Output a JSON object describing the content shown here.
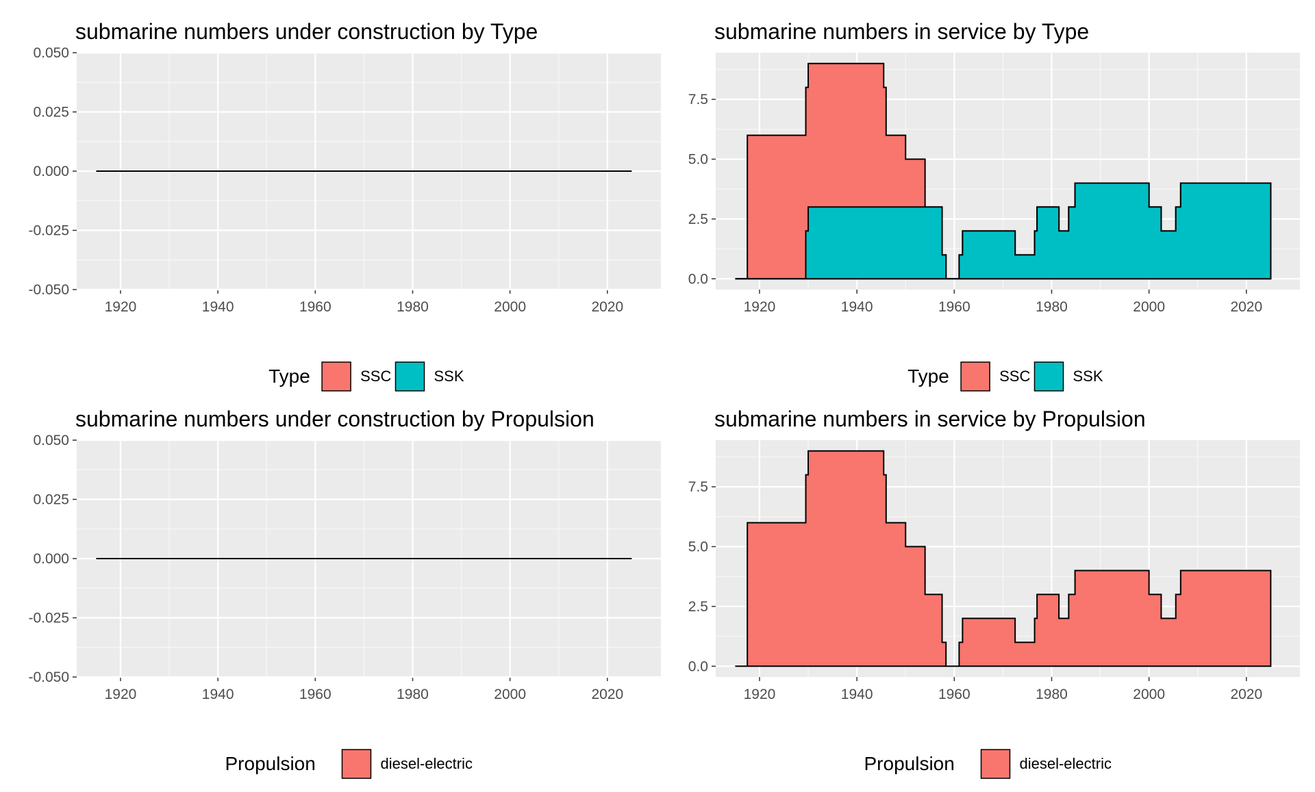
{
  "chart_data": [
    {
      "type": "area",
      "title": "submarine numbers under construction by Type",
      "xlabel": "",
      "ylabel": "",
      "xlim": [
        1911,
        2031
      ],
      "ylim": [
        -0.05,
        0.05
      ],
      "x_ticks": [
        1920,
        1940,
        1960,
        1980,
        2000,
        2020
      ],
      "y_ticks": [
        -0.05,
        -0.025,
        0,
        0.025,
        0.05
      ],
      "y_tick_labels": [
        "-0.050",
        "-0.025",
        "0.000",
        "0.025",
        "0.050"
      ],
      "grid": true,
      "legend": {
        "position": "bottom",
        "title": "Type",
        "entries": [
          {
            "label": "SSC",
            "color": "#F8766D"
          },
          {
            "label": "SSK",
            "color": "#00BFC4"
          }
        ]
      },
      "series": [
        {
          "points": [
            [
              1915,
              0
            ],
            [
              2025,
              0
            ]
          ]
        }
      ]
    },
    {
      "type": "area",
      "title": "submarine numbers in service by Type",
      "xlabel": "",
      "ylabel": "",
      "xlim": [
        1911,
        2031
      ],
      "ylim": [
        -0.45,
        9.45
      ],
      "x_ticks": [
        1920,
        1940,
        1960,
        1980,
        2000,
        2020
      ],
      "y_ticks": [
        0,
        2.5,
        5,
        7.5
      ],
      "y_tick_labels": [
        "0.0",
        "2.5",
        "5.0",
        "7.5"
      ],
      "grid": true,
      "stacked": true,
      "legend": {
        "position": "bottom",
        "title": "Type",
        "entries": [
          {
            "label": "SSC",
            "color": "#F8766D"
          },
          {
            "label": "SSK",
            "color": "#00BFC4"
          }
        ]
      },
      "series": [
        {
          "name": "SSC",
          "color": "#F8766D",
          "points": [
            [
              1915,
              0
            ],
            [
              1917.5,
              0
            ],
            [
              1917.5,
              6
            ],
            [
              1929.5,
              6
            ],
            [
              1929.5,
              8
            ],
            [
              1930,
              8
            ],
            [
              1930,
              9
            ],
            [
              1945.5,
              9
            ],
            [
              1945.5,
              8
            ],
            [
              1946,
              8
            ],
            [
              1946,
              6
            ],
            [
              1950,
              6
            ],
            [
              1950,
              5
            ],
            [
              1954,
              5
            ],
            [
              1954,
              3
            ],
            [
              1957.5,
              3
            ],
            [
              1957.5,
              1
            ],
            [
              1958.3,
              1
            ],
            [
              1958.3,
              0
            ],
            [
              1961,
              0
            ],
            [
              1961,
              1
            ],
            [
              1961.7,
              1
            ],
            [
              1961.7,
              2
            ],
            [
              1972.5,
              2
            ],
            [
              1972.5,
              1
            ],
            [
              1976.5,
              1
            ],
            [
              1976.5,
              2
            ],
            [
              1977,
              2
            ],
            [
              1977,
              3
            ],
            [
              1981.5,
              3
            ],
            [
              1981.5,
              2
            ],
            [
              1983.5,
              2
            ],
            [
              1983.5,
              3
            ],
            [
              1984.8,
              3
            ],
            [
              1984.8,
              4
            ],
            [
              2000,
              4
            ],
            [
              2000,
              3
            ],
            [
              2002.5,
              3
            ],
            [
              2002.5,
              2
            ],
            [
              2005.5,
              2
            ],
            [
              2005.5,
              3
            ],
            [
              2006.5,
              3
            ],
            [
              2006.5,
              4
            ],
            [
              2025,
              4
            ],
            [
              2025,
              0
            ]
          ]
        },
        {
          "name": "SSK",
          "color": "#00BFC4",
          "points": [
            [
              1915,
              0
            ],
            [
              1929.5,
              0
            ],
            [
              1929.5,
              2
            ],
            [
              1930,
              2
            ],
            [
              1930,
              3
            ],
            [
              1957.5,
              3
            ],
            [
              1957.5,
              1
            ],
            [
              1958.3,
              1
            ],
            [
              1958.3,
              0
            ],
            [
              1961,
              0
            ],
            [
              1961,
              1
            ],
            [
              1961.7,
              1
            ],
            [
              1961.7,
              2
            ],
            [
              1972.5,
              2
            ],
            [
              1972.5,
              1
            ],
            [
              1976.5,
              1
            ],
            [
              1976.5,
              2
            ],
            [
              1977,
              2
            ],
            [
              1977,
              3
            ],
            [
              1981.5,
              3
            ],
            [
              1981.5,
              2
            ],
            [
              1983.5,
              2
            ],
            [
              1983.5,
              3
            ],
            [
              1984.8,
              3
            ],
            [
              1984.8,
              4
            ],
            [
              2000,
              4
            ],
            [
              2000,
              3
            ],
            [
              2002.5,
              3
            ],
            [
              2002.5,
              2
            ],
            [
              2005.5,
              2
            ],
            [
              2005.5,
              3
            ],
            [
              2006.5,
              3
            ],
            [
              2006.5,
              4
            ],
            [
              2025,
              4
            ],
            [
              2025,
              0
            ]
          ]
        }
      ]
    },
    {
      "type": "area",
      "title": "submarine numbers under construction by Propulsion",
      "xlabel": "",
      "ylabel": "",
      "xlim": [
        1911,
        2031
      ],
      "ylim": [
        -0.05,
        0.05
      ],
      "x_ticks": [
        1920,
        1940,
        1960,
        1980,
        2000,
        2020
      ],
      "y_ticks": [
        -0.05,
        -0.025,
        0,
        0.025,
        0.05
      ],
      "y_tick_labels": [
        "-0.050",
        "-0.025",
        "0.000",
        "0.025",
        "0.050"
      ],
      "grid": true,
      "legend": {
        "position": "bottom",
        "title": "Propulsion",
        "entries": [
          {
            "label": "diesel-electric",
            "color": "#F8766D"
          }
        ]
      },
      "series": [
        {
          "points": [
            [
              1915,
              0
            ],
            [
              2025,
              0
            ]
          ]
        }
      ]
    },
    {
      "type": "area",
      "title": "submarine numbers in service by Propulsion",
      "xlabel": "",
      "ylabel": "",
      "xlim": [
        1911,
        2031
      ],
      "ylim": [
        -0.45,
        9.45
      ],
      "x_ticks": [
        1920,
        1940,
        1960,
        1980,
        2000,
        2020
      ],
      "y_ticks": [
        0,
        2.5,
        5,
        7.5
      ],
      "y_tick_labels": [
        "0.0",
        "2.5",
        "5.0",
        "7.5"
      ],
      "grid": true,
      "legend": {
        "position": "bottom",
        "title": "Propulsion",
        "entries": [
          {
            "label": "diesel-electric",
            "color": "#F8766D"
          }
        ]
      },
      "series": [
        {
          "name": "diesel-electric",
          "color": "#F8766D",
          "points": [
            [
              1915,
              0
            ],
            [
              1917.5,
              0
            ],
            [
              1917.5,
              6
            ],
            [
              1929.5,
              6
            ],
            [
              1929.5,
              8
            ],
            [
              1930,
              8
            ],
            [
              1930,
              9
            ],
            [
              1945.5,
              9
            ],
            [
              1945.5,
              8
            ],
            [
              1946,
              8
            ],
            [
              1946,
              6
            ],
            [
              1950,
              6
            ],
            [
              1950,
              5
            ],
            [
              1954,
              5
            ],
            [
              1954,
              3
            ],
            [
              1957.5,
              3
            ],
            [
              1957.5,
              1
            ],
            [
              1958.3,
              1
            ],
            [
              1958.3,
              0
            ],
            [
              1961,
              0
            ],
            [
              1961,
              1
            ],
            [
              1961.7,
              1
            ],
            [
              1961.7,
              2
            ],
            [
              1972.5,
              2
            ],
            [
              1972.5,
              1
            ],
            [
              1976.5,
              1
            ],
            [
              1976.5,
              2
            ],
            [
              1977,
              2
            ],
            [
              1977,
              3
            ],
            [
              1981.5,
              3
            ],
            [
              1981.5,
              2
            ],
            [
              1983.5,
              2
            ],
            [
              1983.5,
              3
            ],
            [
              1984.8,
              3
            ],
            [
              1984.8,
              4
            ],
            [
              2000,
              4
            ],
            [
              2000,
              3
            ],
            [
              2002.5,
              3
            ],
            [
              2002.5,
              2
            ],
            [
              2005.5,
              2
            ],
            [
              2005.5,
              3
            ],
            [
              2006.5,
              3
            ],
            [
              2006.5,
              4
            ],
            [
              2025,
              4
            ],
            [
              2025,
              0
            ]
          ]
        }
      ]
    }
  ]
}
